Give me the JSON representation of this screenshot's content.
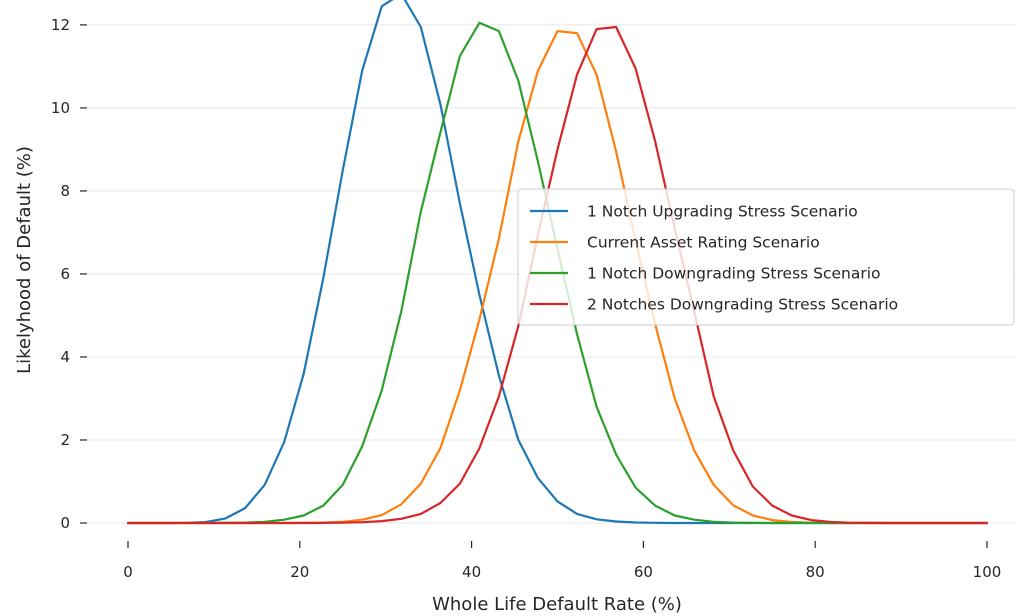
{
  "chart_data": {
    "type": "line",
    "title": "",
    "xlabel": "Whole Life Default Rate (%)",
    "ylabel": "Likelyhood of Default (%)",
    "xlim": [
      0,
      100
    ],
    "ylim": [
      0,
      12.6
    ],
    "xticks": [
      0,
      20,
      40,
      60,
      80,
      100
    ],
    "xtick_labels": [
      "0",
      "20",
      "40",
      "60",
      "80",
      "100"
    ],
    "yticks": [
      0,
      2,
      4,
      6,
      8,
      10,
      12
    ],
    "ytick_labels": [
      "0",
      "2",
      "4",
      "6",
      "8",
      "10",
      "12"
    ],
    "grid": "horizontal",
    "legend_position": "center-right",
    "series": [
      {
        "name": "1 Notch Upgrading Stress Scenario",
        "color": "#1f77b4",
        "x": [
          0,
          2.27,
          4.55,
          6.82,
          9.09,
          11.36,
          13.64,
          15.91,
          18.18,
          20.45,
          22.73,
          25,
          27.27,
          29.55,
          31.82,
          34.09,
          36.36,
          38.64,
          40.91,
          43.18,
          45.45,
          47.73,
          50,
          52.27,
          54.55,
          56.82,
          59.09,
          61.36,
          63.64,
          65.91,
          68.18,
          70.45,
          72.73,
          75,
          77.27,
          79.55,
          81.82,
          84.09,
          86.36,
          88.64,
          90.91,
          93.18,
          95.45,
          97.73,
          100
        ],
        "y": [
          0,
          0,
          0.001,
          0.005,
          0.025,
          0.11,
          0.36,
          0.92,
          1.95,
          3.6,
          5.9,
          8.5,
          10.9,
          12.45,
          12.75,
          11.95,
          10.1,
          7.7,
          5.5,
          3.55,
          2.0,
          1.08,
          0.52,
          0.22,
          0.09,
          0.035,
          0.012,
          0.004,
          0.001,
          0,
          0,
          0,
          0,
          0,
          0,
          0,
          0,
          0,
          0,
          0,
          0,
          0,
          0,
          0,
          0
        ]
      },
      {
        "name": "Current Asset Rating Scenario",
        "color": "#ff7f0e",
        "x": [
          0,
          2.27,
          4.55,
          6.82,
          9.09,
          11.36,
          13.64,
          15.91,
          18.18,
          20.45,
          22.73,
          25,
          27.27,
          29.55,
          31.82,
          34.09,
          36.36,
          38.64,
          40.91,
          43.18,
          45.45,
          47.73,
          50,
          52.27,
          54.55,
          56.82,
          59.09,
          61.36,
          63.64,
          65.91,
          68.18,
          70.45,
          72.73,
          75,
          77.27,
          79.55,
          81.82,
          84.09,
          86.36,
          88.64,
          90.91,
          93.18,
          95.45,
          97.73,
          100
        ],
        "y": [
          0,
          0,
          0,
          0,
          0,
          0,
          0,
          0,
          0.001,
          0.003,
          0.01,
          0.03,
          0.08,
          0.19,
          0.45,
          0.95,
          1.8,
          3.2,
          4.9,
          6.85,
          9.2,
          10.9,
          11.85,
          11.8,
          10.8,
          8.95,
          6.8,
          4.8,
          3.0,
          1.75,
          0.92,
          0.43,
          0.18,
          0.07,
          0.025,
          0.008,
          0.002,
          0.001,
          0,
          0,
          0,
          0,
          0,
          0,
          0
        ]
      },
      {
        "name": "1 Notch Downgrading Stress Scenario",
        "color": "#2ca02c",
        "x": [
          0,
          2.27,
          4.55,
          6.82,
          9.09,
          11.36,
          13.64,
          15.91,
          18.18,
          20.45,
          22.73,
          25,
          27.27,
          29.55,
          31.82,
          34.09,
          36.36,
          38.64,
          40.91,
          43.18,
          45.45,
          47.73,
          50,
          52.27,
          54.55,
          56.82,
          59.09,
          61.36,
          63.64,
          65.91,
          68.18,
          70.45,
          72.73,
          75,
          77.27,
          79.55,
          81.82,
          84.09,
          86.36,
          88.64,
          90.91,
          93.18,
          95.45,
          97.73,
          100
        ],
        "y": [
          0,
          0,
          0,
          0,
          0.001,
          0.003,
          0.01,
          0.03,
          0.08,
          0.18,
          0.42,
          0.92,
          1.85,
          3.2,
          5.1,
          7.5,
          9.4,
          11.25,
          12.05,
          11.85,
          10.65,
          8.7,
          6.6,
          4.55,
          2.8,
          1.65,
          0.85,
          0.42,
          0.18,
          0.08,
          0.03,
          0.01,
          0.003,
          0.001,
          0,
          0,
          0,
          0,
          0,
          0,
          0,
          0,
          0,
          0,
          0
        ]
      },
      {
        "name": "2 Notches Downgrading Stress Scenario",
        "color": "#d62728",
        "x": [
          0,
          2.27,
          4.55,
          6.82,
          9.09,
          11.36,
          13.64,
          15.91,
          18.18,
          20.45,
          22.73,
          25,
          27.27,
          29.55,
          31.82,
          34.09,
          36.36,
          38.64,
          40.91,
          43.18,
          45.45,
          47.73,
          50,
          52.27,
          54.55,
          56.82,
          59.09,
          61.36,
          63.64,
          65.91,
          68.18,
          70.45,
          72.73,
          75,
          77.27,
          79.55,
          81.82,
          84.09,
          86.36,
          88.64,
          90.91,
          93.18,
          95.45,
          97.73,
          100
        ],
        "y": [
          0,
          0,
          0,
          0,
          0,
          0,
          0,
          0,
          0,
          0.001,
          0.003,
          0.008,
          0.02,
          0.045,
          0.1,
          0.22,
          0.48,
          0.95,
          1.8,
          3.05,
          4.75,
          6.95,
          9.0,
          10.8,
          11.9,
          11.95,
          10.95,
          9.2,
          7.1,
          5.1,
          3.05,
          1.75,
          0.88,
          0.42,
          0.18,
          0.07,
          0.025,
          0.008,
          0.002,
          0.001,
          0,
          0,
          0,
          0,
          0
        ]
      }
    ]
  }
}
